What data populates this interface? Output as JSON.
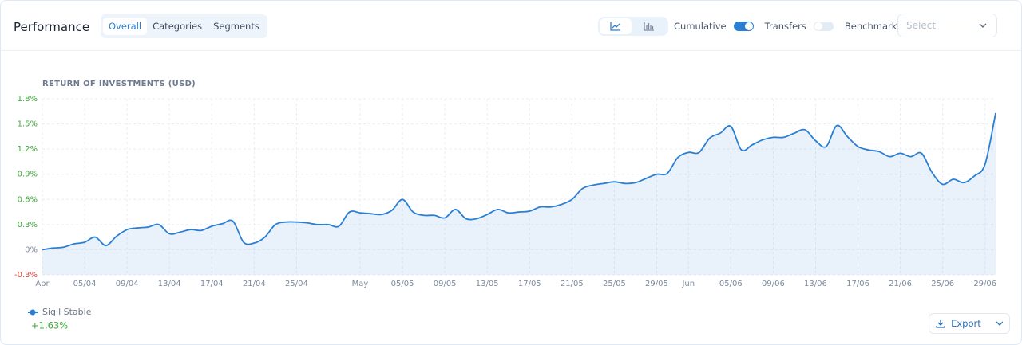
{
  "header": {
    "title": "Performance",
    "tabs": [
      "Overall",
      "Categories",
      "Segments"
    ],
    "active_tab": 0,
    "toggles": [
      {
        "label": "Cumulative",
        "on": true
      },
      {
        "label": "Transfers",
        "on": false
      }
    ],
    "benchmark_label": "Benchmark",
    "select_placeholder": "Select"
  },
  "chart_data": {
    "type": "line",
    "title": "RETURN OF INVESTMENTS (USD)",
    "x": [
      "01/04",
      "02/04",
      "03/04",
      "04/04",
      "05/04",
      "06/04",
      "07/04",
      "08/04",
      "09/04",
      "10/04",
      "11/04",
      "12/04",
      "13/04",
      "14/04",
      "15/04",
      "16/04",
      "17/04",
      "18/04",
      "19/04",
      "20/04",
      "21/04",
      "22/04",
      "23/04",
      "24/04",
      "25/04",
      "26/04",
      "27/04",
      "28/04",
      "29/04",
      "30/04",
      "01/05",
      "02/05",
      "03/05",
      "04/05",
      "05/05",
      "06/05",
      "07/05",
      "08/05",
      "09/05",
      "10/05",
      "11/05",
      "12/05",
      "13/05",
      "14/05",
      "15/05",
      "16/05",
      "17/05",
      "18/05",
      "19/05",
      "20/05",
      "21/05",
      "22/05",
      "23/05",
      "24/05",
      "25/05",
      "26/05",
      "27/05",
      "28/05",
      "29/05",
      "30/05",
      "31/05",
      "01/06",
      "02/06",
      "03/06",
      "04/06",
      "05/06",
      "06/06",
      "07/06",
      "08/06",
      "09/06",
      "10/06",
      "11/06",
      "12/06",
      "13/06",
      "14/06",
      "15/06",
      "16/06",
      "17/06",
      "18/06",
      "19/06",
      "20/06",
      "21/06",
      "22/06",
      "23/06",
      "24/06",
      "25/06",
      "26/06",
      "27/06",
      "28/06",
      "29/06",
      "30/06"
    ],
    "series": [
      {
        "name": "Sigil Stable",
        "color": "#2a7fd4",
        "summary": "+1.63%",
        "values": [
          0.0,
          0.02,
          0.03,
          0.07,
          0.09,
          0.15,
          0.05,
          0.16,
          0.24,
          0.26,
          0.27,
          0.3,
          0.19,
          0.21,
          0.24,
          0.23,
          0.28,
          0.31,
          0.34,
          0.09,
          0.08,
          0.15,
          0.3,
          0.33,
          0.33,
          0.32,
          0.3,
          0.3,
          0.28,
          0.45,
          0.44,
          0.43,
          0.42,
          0.47,
          0.6,
          0.45,
          0.41,
          0.41,
          0.38,
          0.48,
          0.37,
          0.37,
          0.42,
          0.48,
          0.44,
          0.45,
          0.46,
          0.51,
          0.51,
          0.54,
          0.6,
          0.73,
          0.77,
          0.79,
          0.81,
          0.79,
          0.8,
          0.85,
          0.9,
          0.91,
          1.1,
          1.16,
          1.16,
          1.33,
          1.39,
          1.47,
          1.19,
          1.25,
          1.31,
          1.34,
          1.34,
          1.39,
          1.43,
          1.3,
          1.23,
          1.48,
          1.35,
          1.23,
          1.19,
          1.17,
          1.11,
          1.15,
          1.11,
          1.15,
          0.92,
          0.78,
          0.84,
          0.8,
          0.88,
          1.02,
          1.63
        ]
      }
    ],
    "ylim": [
      -0.3,
      1.8
    ],
    "yticks": [
      {
        "value": -0.3,
        "label": "-0.3%"
      },
      {
        "value": 0,
        "label": "0%"
      },
      {
        "value": 0.3,
        "label": "0.3%"
      },
      {
        "value": 0.6,
        "label": "0.6%"
      },
      {
        "value": 0.9,
        "label": "0.9%"
      },
      {
        "value": 1.2,
        "label": "1.2%"
      },
      {
        "value": 1.5,
        "label": "1.5%"
      },
      {
        "value": 1.8,
        "label": "1.8%"
      }
    ],
    "xticks": [
      {
        "value": "01/04",
        "label": "Apr"
      },
      "05/04",
      "09/04",
      "13/04",
      "17/04",
      "21/04",
      "25/04",
      {
        "value": "01/05",
        "label": "May"
      },
      "05/05",
      "09/05",
      "13/05",
      "17/05",
      "21/05",
      "25/05",
      "29/05",
      {
        "value": "01/06",
        "label": "Jun"
      },
      "05/06",
      "09/06",
      "13/06",
      "17/06",
      "21/06",
      "25/06",
      "29/06"
    ],
    "grid": true
  },
  "footer": {
    "export_label": "Export"
  }
}
